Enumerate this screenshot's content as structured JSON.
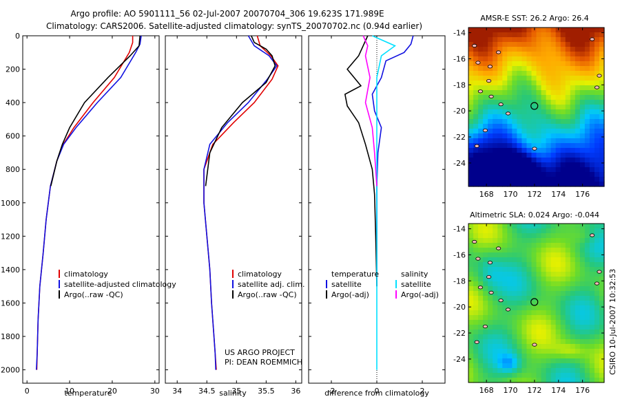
{
  "title": {
    "line1": "Argo profile: AO 5901111_56 02-Jul-2007 20070704_306 19.623S 171.989E",
    "line2": "Climatology: CARS2006. Satellite-adjusted climatology: synTS_20070702.nc (0.94d earlier)"
  },
  "credit": {
    "line1": "US ARGO PROJECT",
    "line2": "PI: DEAN ROEMMICH",
    "side": "CSIRO 10-Jul-2007 10:32:53"
  },
  "colors": {
    "climatology": "#e00000",
    "satellite": "#1010e0",
    "argo": "#000000",
    "sat_salinity": "#00e0ff",
    "argo_salinity": "#ff00ff"
  },
  "chart_data": [
    {
      "id": "temperature",
      "type": "line",
      "xlabel": "temperature",
      "ylabel": "",
      "xlim": [
        -1,
        31
      ],
      "ylim": [
        0,
        2080
      ],
      "xticks": [
        0,
        10,
        20,
        30
      ],
      "yticks": [
        0,
        200,
        400,
        600,
        800,
        1000,
        1200,
        1400,
        1600,
        1800,
        2000
      ],
      "legend": [
        "climatology",
        "satellite-adjusted climatology",
        "Argo(..raw -QC)"
      ],
      "legend_position": "lower-right",
      "series": [
        {
          "name": "climatology",
          "color": "#e00000",
          "x": [
            24.8,
            24.8,
            24.0,
            20.5,
            15.5,
            11.0,
            8.5,
            7.0,
            5.5,
            4.5,
            3.8,
            3.0,
            2.6,
            2.4,
            2.3
          ],
          "y": [
            0,
            40,
            100,
            250,
            400,
            550,
            650,
            750,
            900,
            1100,
            1300,
            1500,
            1700,
            1900,
            2000
          ]
        },
        {
          "name": "satellite",
          "color": "#1010e0",
          "x": [
            26.8,
            26.5,
            25.5,
            22.0,
            16.5,
            11.5,
            8.6,
            7.0,
            5.5,
            4.5,
            3.8,
            3.0,
            2.6,
            2.4,
            2.2
          ],
          "y": [
            0,
            50,
            100,
            250,
            400,
            550,
            650,
            750,
            900,
            1100,
            1300,
            1500,
            1700,
            1900,
            2000
          ]
        },
        {
          "name": "Argo",
          "color": "#000000",
          "x": [
            26.5,
            26.3,
            24.2,
            19.0,
            13.5,
            10.0,
            8.3,
            7.0,
            5.6
          ],
          "y": [
            0,
            60,
            120,
            250,
            400,
            550,
            650,
            750,
            900
          ]
        }
      ]
    },
    {
      "id": "salinity",
      "type": "line",
      "xlabel": "salinity",
      "ylabel": "",
      "xlim": [
        33.8,
        36.1
      ],
      "ylim": [
        0,
        2080
      ],
      "xticks": [
        34,
        34.5,
        35,
        35.5,
        36
      ],
      "yticks": [
        0,
        200,
        400,
        600,
        800,
        1000,
        1200,
        1400,
        1600,
        1800,
        2000
      ],
      "legend": [
        "climatology",
        "satellite adj. clim.",
        "Argo(..raw -QC)"
      ],
      "legend_position": "lower-right",
      "series": [
        {
          "name": "climatology",
          "color": "#e00000",
          "x": [
            35.35,
            35.4,
            35.58,
            35.7,
            35.6,
            35.3,
            34.95,
            34.6,
            34.45,
            34.45,
            34.5,
            34.55,
            34.58,
            34.62,
            34.64,
            34.66
          ],
          "y": [
            0,
            60,
            120,
            180,
            260,
            400,
            520,
            650,
            800,
            1000,
            1200,
            1400,
            1600,
            1800,
            1900,
            2000
          ]
        },
        {
          "name": "satellite",
          "color": "#1010e0",
          "x": [
            35.2,
            35.3,
            35.55,
            35.68,
            35.52,
            35.2,
            34.85,
            34.55,
            34.45,
            34.45,
            34.5,
            34.55,
            34.58,
            34.62,
            34.64,
            34.65
          ],
          "y": [
            0,
            60,
            120,
            180,
            260,
            400,
            520,
            650,
            800,
            1000,
            1200,
            1400,
            1600,
            1800,
            1900,
            2000
          ]
        },
        {
          "name": "Argo",
          "color": "#000000",
          "x": [
            35.25,
            35.3,
            35.5,
            35.6,
            35.65,
            35.5,
            35.1,
            34.75,
            34.55,
            34.48
          ],
          "y": [
            0,
            40,
            80,
            120,
            180,
            280,
            400,
            550,
            700,
            900
          ]
        }
      ]
    },
    {
      "id": "difference",
      "type": "line",
      "xlabel": "difference from climatology",
      "ylabel": "",
      "xlim": [
        -3.0,
        3.0
      ],
      "ylim": [
        0,
        2080
      ],
      "xticks": [
        -2,
        0,
        2
      ],
      "yticks": [
        0,
        200,
        400,
        600,
        800,
        1000,
        1200,
        1400,
        1600,
        1800,
        2000
      ],
      "legend_headers": [
        "temperature",
        "salinity"
      ],
      "legend": [
        "satellite",
        "Argo(-adj)",
        "satellite",
        "Argo(-adj)"
      ],
      "legend_position": "lower-right",
      "series": [
        {
          "name": "temperature satellite",
          "color": "#1010e0",
          "x": [
            1.6,
            1.5,
            1.2,
            0.4,
            0.2,
            -0.2,
            -0.1,
            0.2,
            0.05,
            0.0,
            0.0,
            0.0,
            0.0
          ],
          "y": [
            0,
            50,
            100,
            150,
            250,
            350,
            450,
            550,
            700,
            900,
            1100,
            1300,
            1500
          ]
        },
        {
          "name": "temperature Argo(-adj)",
          "color": "#000000",
          "x": [
            -0.4,
            -0.6,
            -0.8,
            -1.3,
            -0.7,
            -1.4,
            -1.3,
            -0.8,
            -0.5,
            -0.2,
            -0.1,
            -0.05,
            0.0
          ],
          "y": [
            0,
            60,
            120,
            200,
            300,
            350,
            420,
            520,
            650,
            800,
            950,
            1200,
            1500
          ]
        },
        {
          "name": "salinity satellite",
          "color": "#00e0ff",
          "x": [
            -0.2,
            0.8,
            0.2,
            0.0,
            0.0,
            0.0,
            0.0,
            0.0,
            0.0
          ],
          "y": [
            0,
            60,
            120,
            250,
            500,
            800,
            1200,
            1600,
            2000
          ]
        },
        {
          "name": "salinity Argo(-adj)",
          "color": "#ff00ff",
          "x": [
            -0.6,
            -0.4,
            -0.5,
            -0.3,
            -0.5,
            -0.2,
            -0.1,
            0.0
          ],
          "y": [
            0,
            60,
            120,
            250,
            400,
            550,
            700,
            900
          ]
        }
      ]
    },
    {
      "id": "sst-map",
      "type": "heatmap",
      "title": "AMSR-E SST: 26.2 Argo: 26.4",
      "xlim": [
        166.5,
        177.8
      ],
      "ylim": [
        -25.8,
        -13.6
      ],
      "xticks": [
        168,
        170,
        172,
        174,
        176
      ],
      "yticks": [
        -14,
        -16,
        -18,
        -20,
        -22,
        -24
      ],
      "argo_position": {
        "lon": 171.989,
        "lat": -19.623
      }
    },
    {
      "id": "sla-map",
      "type": "heatmap",
      "title": "Altimetric SLA: 0.024 Argo: -0.044",
      "xlim": [
        166.5,
        177.8
      ],
      "ylim": [
        -25.8,
        -13.6
      ],
      "xticks": [
        168,
        170,
        172,
        174,
        176
      ],
      "yticks": [
        -14,
        -16,
        -18,
        -20,
        -22,
        -24
      ],
      "argo_position": {
        "lon": 171.989,
        "lat": -19.623
      }
    }
  ]
}
